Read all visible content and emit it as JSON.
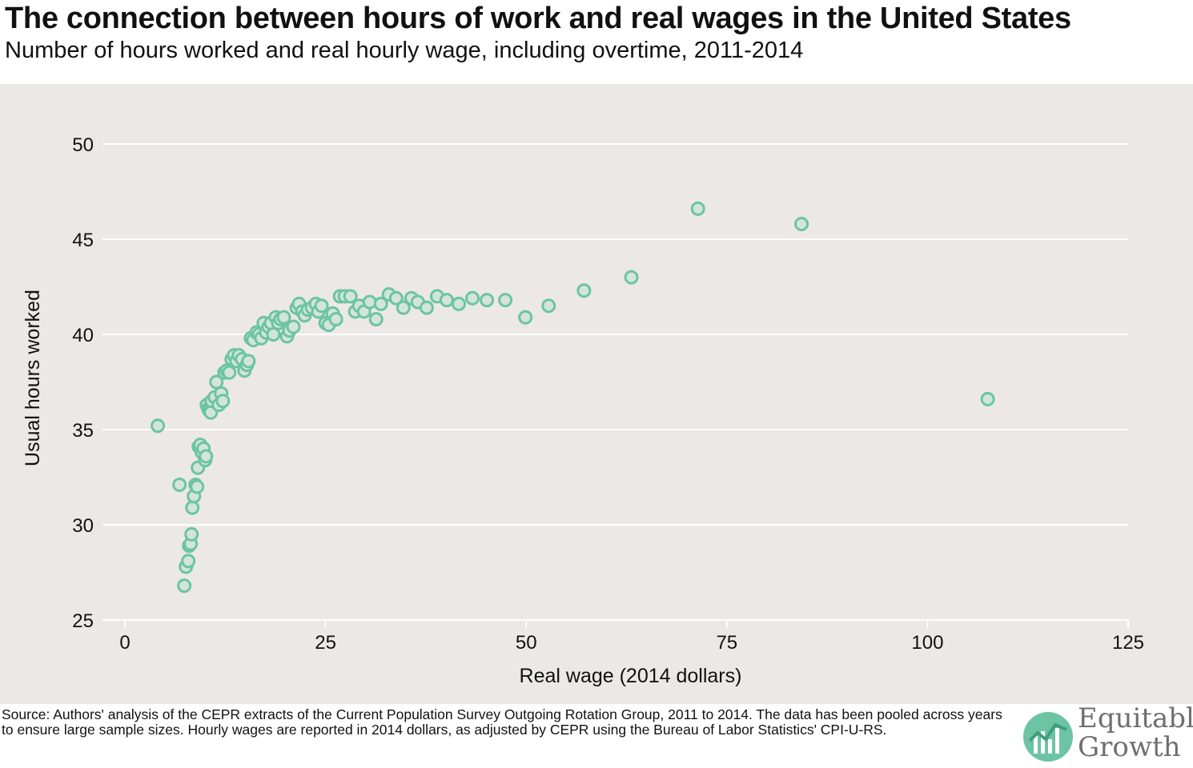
{
  "header": {
    "title": "The connection between hours of work and real wages in the United States",
    "subtitle": "Number of hours worked and real hourly wage, including overtime, 2011-2014"
  },
  "footer": {
    "source": "Source: Authors' analysis of the CEPR extracts of the Current Population Survey Outgoing Rotation Group, 2011 to 2014. The data has been pooled across years to ensure large sample sizes. Hourly wages are reported in 2014 dollars, as adjusted by CEPR using the Bureau of Labor Statistics' CPI-U-RS.",
    "logo_line1": "Equitable",
    "logo_line2": "Growth"
  },
  "colors": {
    "panel_background": "#ece8e7",
    "point_stroke": "#6cc4a4",
    "point_fill": "#d3e4dc",
    "gridline": "#ffffff",
    "logo_green": "#6cc4a4"
  },
  "chart_data": {
    "type": "scatter",
    "title": "The connection between hours of work and real wages in the United States",
    "subtitle": "Number of hours worked and real hourly wage, including overtime, 2011-2014",
    "xlabel": "Real wage (2014 dollars)",
    "ylabel": "Usual hours worked",
    "xlim": [
      0,
      125
    ],
    "ylim": [
      25,
      50
    ],
    "xticks": [
      0,
      25,
      50,
      75,
      100,
      125
    ],
    "yticks": [
      25,
      30,
      35,
      40,
      45,
      50
    ],
    "grid": "horizontal",
    "legend": "none",
    "x": [
      4.1,
      6.8,
      7.4,
      7.6,
      7.9,
      8.0,
      8.2,
      8.3,
      8.4,
      8.6,
      8.8,
      9.0,
      9.1,
      9.2,
      9.4,
      9.6,
      9.8,
      10.0,
      10.1,
      10.2,
      10.4,
      10.5,
      10.7,
      10.8,
      11.2,
      11.4,
      11.7,
      12.0,
      12.2,
      12.4,
      12.7,
      13.0,
      13.3,
      13.6,
      13.9,
      14.2,
      14.6,
      14.9,
      15.2,
      15.4,
      15.7,
      16.0,
      16.4,
      16.7,
      17.0,
      17.3,
      17.6,
      17.9,
      18.2,
      18.5,
      18.8,
      19.1,
      19.4,
      19.8,
      20.2,
      20.5,
      21.0,
      21.4,
      21.7,
      22.1,
      22.4,
      22.8,
      23.3,
      23.8,
      24.1,
      24.5,
      25.0,
      25.4,
      25.9,
      26.3,
      26.8,
      27.4,
      28.1,
      28.7,
      29.2,
      29.8,
      30.5,
      31.3,
      31.9,
      32.9,
      33.8,
      34.7,
      35.7,
      36.5,
      37.6,
      38.9,
      40.1,
      41.6,
      43.3,
      45.1,
      47.4,
      49.9,
      52.8,
      57.2,
      63.1,
      71.4,
      84.3,
      107.5
    ],
    "y": [
      35.2,
      32.1,
      26.8,
      27.8,
      28.1,
      28.9,
      29.0,
      29.5,
      30.9,
      31.5,
      32.1,
      32.0,
      33.0,
      34.1,
      34.2,
      33.8,
      34.0,
      33.4,
      33.6,
      36.3,
      36.1,
      36.0,
      35.9,
      36.5,
      36.7,
      37.5,
      36.3,
      36.9,
      36.5,
      38.0,
      38.1,
      38.0,
      38.7,
      38.9,
      38.6,
      38.9,
      38.7,
      38.1,
      38.4,
      38.6,
      39.8,
      39.7,
      40.1,
      40.0,
      39.8,
      40.6,
      40.1,
      40.4,
      40.6,
      40.0,
      40.9,
      40.6,
      40.8,
      40.9,
      39.9,
      40.2,
      40.4,
      41.4,
      41.6,
      41.2,
      41.0,
      41.3,
      41.4,
      41.6,
      41.2,
      41.5,
      40.6,
      40.5,
      41.1,
      40.8,
      42.0,
      42.0,
      42.0,
      41.2,
      41.5,
      41.2,
      41.7,
      40.8,
      41.6,
      42.1,
      41.9,
      41.4,
      41.9,
      41.7,
      41.4,
      42.0,
      41.8,
      41.6,
      41.9,
      41.8,
      41.8,
      40.9,
      41.5,
      42.3,
      43.0,
      46.6,
      45.8,
      36.6
    ]
  }
}
